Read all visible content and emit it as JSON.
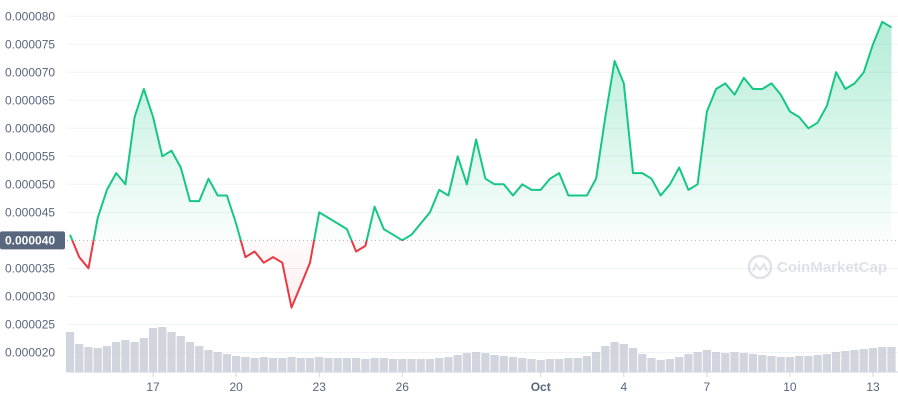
{
  "chart_data": {
    "type": "line",
    "watermark": "CoinMarketCap",
    "categories": [
      null,
      null,
      null,
      null,
      null,
      null,
      null,
      null,
      null,
      "17",
      null,
      null,
      null,
      null,
      null,
      null,
      null,
      null,
      "20",
      null,
      null,
      null,
      null,
      null,
      null,
      null,
      null,
      "23",
      null,
      null,
      null,
      null,
      null,
      null,
      null,
      null,
      "26",
      null,
      null,
      null,
      null,
      null,
      null,
      null,
      null,
      null,
      null,
      null,
      null,
      null,
      null,
      "Oct",
      null,
      null,
      null,
      null,
      null,
      null,
      null,
      null,
      "4",
      null,
      null,
      null,
      null,
      null,
      null,
      null,
      null,
      "7",
      null,
      null,
      null,
      null,
      null,
      null,
      null,
      null,
      "10",
      null,
      null,
      null,
      null,
      null,
      null,
      null,
      null,
      "13",
      null,
      null
    ],
    "baseline": 4e-05,
    "up_color": "#16c784",
    "down_color": "#ea3943",
    "series": [
      {
        "values": [
          4.1e-05,
          3.7e-05,
          3.5e-05,
          4.4e-05,
          4.9e-05,
          5.2e-05,
          5e-05,
          6.2e-05,
          6.7e-05,
          6.2e-05,
          5.5e-05,
          5.6e-05,
          5.3e-05,
          4.7e-05,
          4.7e-05,
          5.1e-05,
          4.8e-05,
          4.8e-05,
          4.3e-05,
          3.7e-05,
          3.8e-05,
          3.6e-05,
          3.7e-05,
          3.6e-05,
          2.8e-05,
          3.2e-05,
          3.6e-05,
          4.5e-05,
          4.4e-05,
          4.3e-05,
          4.2e-05,
          3.8e-05,
          3.9e-05,
          4.6e-05,
          4.2e-05,
          4.1e-05,
          4e-05,
          4.1e-05,
          4.3e-05,
          4.5e-05,
          4.9e-05,
          4.8e-05,
          5.5e-05,
          5e-05,
          5.8e-05,
          5.1e-05,
          5e-05,
          5e-05,
          4.8e-05,
          5e-05,
          4.9e-05,
          4.9e-05,
          5.1e-05,
          5.2e-05,
          4.8e-05,
          4.8e-05,
          4.8e-05,
          5.1e-05,
          6.2e-05,
          7.2e-05,
          6.8e-05,
          5.2e-05,
          5.2e-05,
          5.1e-05,
          4.8e-05,
          5e-05,
          5.3e-05,
          4.9e-05,
          5e-05,
          6.3e-05,
          6.7e-05,
          6.8e-05,
          6.6e-05,
          6.9e-05,
          6.7e-05,
          6.7e-05,
          6.8e-05,
          6.6e-05,
          6.3e-05,
          6.2e-05,
          6e-05,
          6.1e-05,
          6.4e-05,
          7e-05,
          6.7e-05,
          6.8e-05,
          7e-05,
          7.5e-05,
          7.9e-05,
          7.8e-05
        ]
      },
      {
        "axis": "y2",
        "color": "#c6cbd6",
        "values": [
          40,
          28,
          25,
          24,
          26,
          30,
          32,
          30,
          34,
          44,
          45,
          40,
          36,
          30,
          26,
          22,
          20,
          18,
          16,
          15,
          14,
          15,
          14,
          14,
          15,
          14,
          14,
          15,
          14,
          14,
          14,
          14,
          13,
          14,
          14,
          13,
          13,
          13,
          13,
          13,
          14,
          15,
          17,
          19,
          20,
          19,
          17,
          16,
          15,
          14,
          13,
          12,
          13,
          13,
          14,
          14,
          16,
          20,
          26,
          30,
          28,
          24,
          18,
          14,
          12,
          13,
          15,
          18,
          20,
          22,
          20,
          19,
          20,
          19,
          18,
          17,
          16,
          15,
          15,
          16,
          16,
          17,
          18,
          20,
          21,
          22,
          23,
          24,
          25,
          25
        ]
      }
    ],
    "ylim": [
      1.65e-05,
      8.2e-05
    ],
    "yticks": [
      {
        "value": 2e-05,
        "label": "0.000020"
      },
      {
        "value": 2.5e-05,
        "label": "0.000025"
      },
      {
        "value": 3e-05,
        "label": "0.000030"
      },
      {
        "value": 3.5e-05,
        "label": "0.000035"
      },
      {
        "value": 4e-05,
        "label": "0.000040"
      },
      {
        "value": 4.5e-05,
        "label": "0.000045"
      },
      {
        "value": 5e-05,
        "label": "0.000050"
      },
      {
        "value": 5.5e-05,
        "label": "0.000055"
      },
      {
        "value": 6e-05,
        "label": "0.000060"
      },
      {
        "value": 6.5e-05,
        "label": "0.000065"
      },
      {
        "value": 7e-05,
        "label": "0.000070"
      },
      {
        "value": 7.5e-05,
        "label": "0.000075"
      },
      {
        "value": 8e-05,
        "label": "0.000080"
      }
    ],
    "y2lim": [
      0,
      100
    ],
    "grid": true
  }
}
